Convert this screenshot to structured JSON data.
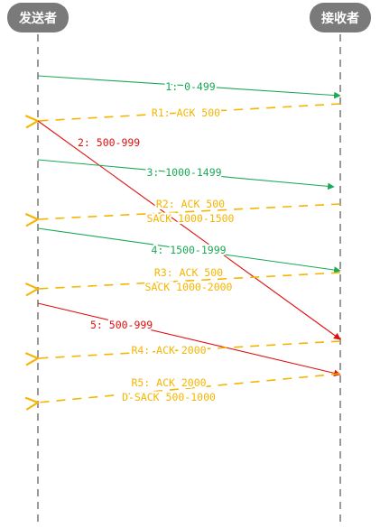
{
  "actors": {
    "sender": "发送者",
    "receiver": "接收者"
  },
  "colors": {
    "data": "#1aaa55",
    "ack": "#f5b500",
    "retransmit": "#e01010",
    "actor": "#7a7a7a",
    "lifeline": "#9a9a9a"
  },
  "messages": [
    {
      "id": "m1",
      "kind": "data",
      "direction": "to-receiver",
      "lines": [
        "1: 0-499"
      ]
    },
    {
      "id": "r1",
      "kind": "ack",
      "direction": "to-sender",
      "lines": [
        "R1: ACK 500"
      ]
    },
    {
      "id": "m2",
      "kind": "retransmit",
      "direction": "to-receiver",
      "lines": [
        "2: 500-999"
      ]
    },
    {
      "id": "m3",
      "kind": "data",
      "direction": "to-receiver",
      "lines": [
        "3: 1000-1499"
      ]
    },
    {
      "id": "r2",
      "kind": "ack",
      "direction": "to-sender",
      "lines": [
        "R2: ACK 500",
        "SACK 1000-1500"
      ]
    },
    {
      "id": "m4",
      "kind": "data",
      "direction": "to-receiver",
      "lines": [
        "4: 1500-1999"
      ]
    },
    {
      "id": "r3",
      "kind": "ack",
      "direction": "to-sender",
      "lines": [
        "R3: ACK 500",
        "SACK 1000-2000"
      ]
    },
    {
      "id": "m5",
      "kind": "retransmit",
      "direction": "to-receiver",
      "lines": [
        "5: 500-999"
      ]
    },
    {
      "id": "r4",
      "kind": "ack",
      "direction": "to-sender",
      "lines": [
        "R4: ACK 2000"
      ]
    },
    {
      "id": "r5",
      "kind": "ack",
      "direction": "to-sender",
      "lines": [
        "R5: ACK 2000",
        "D-SACK 500-1000"
      ]
    }
  ]
}
